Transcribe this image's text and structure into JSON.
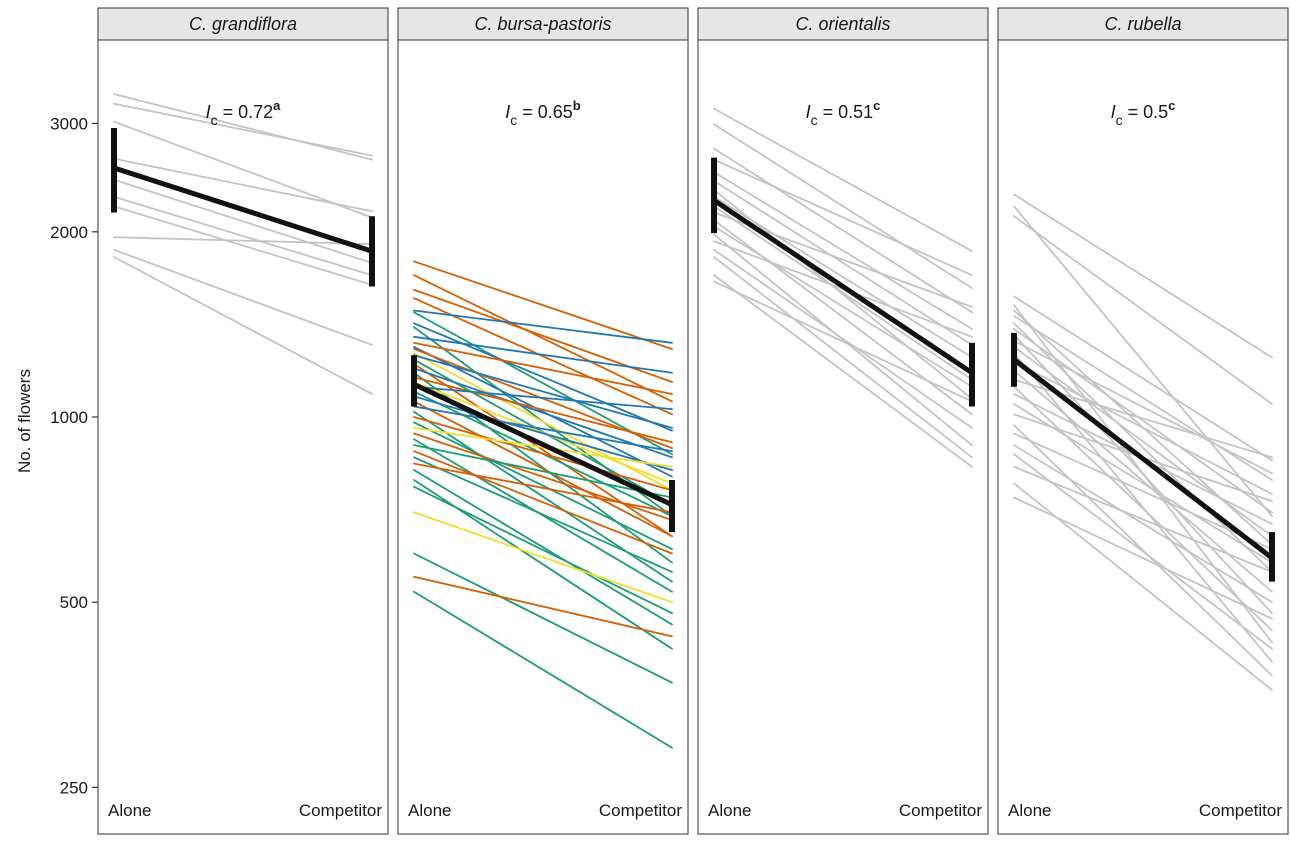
{
  "chart_data": {
    "type": "line",
    "ylabel": "No. of flowers",
    "y_scale": "log",
    "ylim": [
      210,
      4100
    ],
    "y_ticks": [
      {
        "value": 250,
        "label": "250"
      },
      {
        "value": 500,
        "label": "500"
      },
      {
        "value": 1000,
        "label": "1000"
      },
      {
        "value": 2000,
        "label": "2000"
      },
      {
        "value": 3000,
        "label": "3000"
      }
    ],
    "x_categories": [
      "Alone",
      "Competitor"
    ],
    "grid": false,
    "colors": {
      "individual": "#c4c4c4",
      "mean": "#111111",
      "orange": "#d95f02",
      "green": "#1b9e77",
      "blue": "#1f78b4",
      "yellow": "#f2de2a",
      "strip_fill": "#e6e6e6"
    },
    "panels": [
      {
        "title": "C. grandiflora",
        "annotation": {
          "symbol": "I",
          "subscript": "c",
          "text": " = 0.72",
          "superscript": "a"
        },
        "mean": {
          "alone": 2540,
          "competitor": 1860
        },
        "error": {
          "alone": [
            2150,
            2950
          ],
          "competitor": [
            1630,
            2120
          ]
        },
        "lines": [
          {
            "alone": 3350,
            "competitor": 2620,
            "color": "individual"
          },
          {
            "alone": 3230,
            "competitor": 2660,
            "color": "individual"
          },
          {
            "alone": 3020,
            "competitor": 2110,
            "color": "individual"
          },
          {
            "alone": 2630,
            "competitor": 2160,
            "color": "individual"
          },
          {
            "alone": 2430,
            "competitor": 1780,
            "color": "individual"
          },
          {
            "alone": 2280,
            "competitor": 1700,
            "color": "individual"
          },
          {
            "alone": 2200,
            "competitor": 1640,
            "color": "individual"
          },
          {
            "alone": 1960,
            "competitor": 1910,
            "color": "individual"
          },
          {
            "alone": 1870,
            "competitor": 1310,
            "color": "individual"
          },
          {
            "alone": 1820,
            "competitor": 1090,
            "color": "individual"
          }
        ]
      },
      {
        "title": "C. bursa-pastoris",
        "annotation": {
          "symbol": "I",
          "subscript": "c",
          "text": " = 0.65",
          "superscript": "b"
        },
        "mean": {
          "alone": 1130,
          "competitor": 720
        },
        "error": {
          "alone": [
            1040,
            1260
          ],
          "competitor": [
            650,
            790
          ]
        },
        "lines": [
          {
            "alone": 1790,
            "competitor": 1290,
            "color": "orange"
          },
          {
            "alone": 1700,
            "competitor": 1060,
            "color": "orange"
          },
          {
            "alone": 1610,
            "competitor": 1140,
            "color": "orange"
          },
          {
            "alone": 1560,
            "competitor": 1010,
            "color": "orange"
          },
          {
            "alone": 1490,
            "competitor": 1320,
            "color": "blue"
          },
          {
            "alone": 1480,
            "competitor": 870,
            "color": "green"
          },
          {
            "alone": 1420,
            "competitor": 950,
            "color": "blue"
          },
          {
            "alone": 1400,
            "competitor": 690,
            "color": "green"
          },
          {
            "alone": 1350,
            "competitor": 1180,
            "color": "blue"
          },
          {
            "alone": 1320,
            "competitor": 1090,
            "color": "orange"
          },
          {
            "alone": 1300,
            "competitor": 800,
            "color": "blue"
          },
          {
            "alone": 1290,
            "competitor": 890,
            "color": "orange"
          },
          {
            "alone": 1270,
            "competitor": 760,
            "color": "yellow"
          },
          {
            "alone": 1260,
            "competitor": 960,
            "color": "blue"
          },
          {
            "alone": 1240,
            "competitor": 720,
            "color": "green"
          },
          {
            "alone": 1220,
            "competitor": 640,
            "color": "orange"
          },
          {
            "alone": 1200,
            "competitor": 860,
            "color": "blue"
          },
          {
            "alone": 1180,
            "competitor": 580,
            "color": "green"
          },
          {
            "alone": 1160,
            "competitor": 910,
            "color": "orange"
          },
          {
            "alone": 1140,
            "competitor": 780,
            "color": "yellow"
          },
          {
            "alone": 1120,
            "competitor": 1030,
            "color": "blue"
          },
          {
            "alone": 1100,
            "competitor": 690,
            "color": "green"
          },
          {
            "alone": 1080,
            "competitor": 820,
            "color": "blue"
          },
          {
            "alone": 1060,
            "competitor": 640,
            "color": "orange"
          },
          {
            "alone": 1040,
            "competitor": 880,
            "color": "blue"
          },
          {
            "alone": 1020,
            "competitor": 540,
            "color": "green"
          },
          {
            "alone": 1000,
            "competitor": 760,
            "color": "orange"
          },
          {
            "alone": 980,
            "competitor": 610,
            "color": "green"
          },
          {
            "alone": 960,
            "competitor": 830,
            "color": "yellow"
          },
          {
            "alone": 940,
            "competitor": 680,
            "color": "orange"
          },
          {
            "alone": 920,
            "competitor": 520,
            "color": "green"
          },
          {
            "alone": 900,
            "competitor": 740,
            "color": "green"
          },
          {
            "alone": 880,
            "competitor": 600,
            "color": "orange"
          },
          {
            "alone": 860,
            "competitor": 560,
            "color": "green"
          },
          {
            "alone": 840,
            "competitor": 700,
            "color": "orange"
          },
          {
            "alone": 820,
            "competitor": 460,
            "color": "green"
          },
          {
            "alone": 790,
            "competitor": 420,
            "color": "green"
          },
          {
            "alone": 770,
            "competitor": 480,
            "color": "green"
          },
          {
            "alone": 700,
            "competitor": 500,
            "color": "yellow"
          },
          {
            "alone": 600,
            "competitor": 370,
            "color": "green"
          },
          {
            "alone": 550,
            "competitor": 440,
            "color": "orange"
          },
          {
            "alone": 520,
            "competitor": 290,
            "color": "green"
          }
        ]
      },
      {
        "title": "C. orientalis",
        "annotation": {
          "symbol": "I",
          "subscript": "c",
          "text": " = 0.51",
          "superscript": "c"
        },
        "mean": {
          "alone": 2250,
          "competitor": 1180
        },
        "error": {
          "alone": [
            1990,
            2640
          ],
          "competitor": [
            1040,
            1320
          ]
        },
        "lines": [
          {
            "alone": 3170,
            "competitor": 1860,
            "color": "individual"
          },
          {
            "alone": 2990,
            "competitor": 1620,
            "color": "individual"
          },
          {
            "alone": 2730,
            "competitor": 1480,
            "color": "individual"
          },
          {
            "alone": 2620,
            "competitor": 1700,
            "color": "individual"
          },
          {
            "alone": 2500,
            "competitor": 1390,
            "color": "individual"
          },
          {
            "alone": 2420,
            "competitor": 1310,
            "color": "individual"
          },
          {
            "alone": 2340,
            "competitor": 1070,
            "color": "individual"
          },
          {
            "alone": 2280,
            "competitor": 1250,
            "color": "individual"
          },
          {
            "alone": 2200,
            "competitor": 1150,
            "color": "individual"
          },
          {
            "alone": 2150,
            "competitor": 1510,
            "color": "individual"
          },
          {
            "alone": 2090,
            "competitor": 1010,
            "color": "individual"
          },
          {
            "alone": 2040,
            "competitor": 1120,
            "color": "individual"
          },
          {
            "alone": 1980,
            "competitor": 900,
            "color": "individual"
          },
          {
            "alone": 1930,
            "competitor": 1350,
            "color": "individual"
          },
          {
            "alone": 1870,
            "competitor": 960,
            "color": "individual"
          },
          {
            "alone": 1820,
            "competitor": 860,
            "color": "individual"
          },
          {
            "alone": 1700,
            "competitor": 830,
            "color": "individual"
          },
          {
            "alone": 1660,
            "competitor": 1060,
            "color": "individual"
          }
        ]
      },
      {
        "title": "C. rubella",
        "annotation": {
          "symbol": "I",
          "subscript": "c",
          "text": " = 0.5",
          "superscript": "c"
        },
        "mean": {
          "alone": 1240,
          "competitor": 590
        },
        "error": {
          "alone": [
            1120,
            1370
          ],
          "competitor": [
            540,
            650
          ]
        },
        "lines": [
          {
            "alone": 2300,
            "competitor": 1250,
            "color": "individual"
          },
          {
            "alone": 2200,
            "competitor": 690,
            "color": "individual"
          },
          {
            "alone": 2120,
            "competitor": 1050,
            "color": "individual"
          },
          {
            "alone": 1570,
            "competitor": 850,
            "color": "individual"
          },
          {
            "alone": 1520,
            "competitor": 430,
            "color": "individual"
          },
          {
            "alone": 1490,
            "competitor": 620,
            "color": "individual"
          },
          {
            "alone": 1460,
            "competitor": 790,
            "color": "individual"
          },
          {
            "alone": 1420,
            "competitor": 560,
            "color": "individual"
          },
          {
            "alone": 1390,
            "competitor": 700,
            "color": "individual"
          },
          {
            "alone": 1360,
            "competitor": 480,
            "color": "individual"
          },
          {
            "alone": 1330,
            "competitor": 810,
            "color": "individual"
          },
          {
            "alone": 1300,
            "competitor": 640,
            "color": "individual"
          },
          {
            "alone": 1270,
            "competitor": 400,
            "color": "individual"
          },
          {
            "alone": 1230,
            "competitor": 750,
            "color": "individual"
          },
          {
            "alone": 1190,
            "competitor": 520,
            "color": "individual"
          },
          {
            "alone": 1150,
            "competitor": 860,
            "color": "individual"
          },
          {
            "alone": 1120,
            "competitor": 450,
            "color": "individual"
          },
          {
            "alone": 1090,
            "competitor": 670,
            "color": "individual"
          },
          {
            "alone": 1050,
            "competitor": 580,
            "color": "individual"
          },
          {
            "alone": 1010,
            "competitor": 730,
            "color": "individual"
          },
          {
            "alone": 970,
            "competitor": 380,
            "color": "individual"
          },
          {
            "alone": 940,
            "competitor": 610,
            "color": "individual"
          },
          {
            "alone": 900,
            "competitor": 500,
            "color": "individual"
          },
          {
            "alone": 870,
            "competitor": 420,
            "color": "individual"
          },
          {
            "alone": 830,
            "competitor": 560,
            "color": "individual"
          },
          {
            "alone": 780,
            "competitor": 360,
            "color": "individual"
          },
          {
            "alone": 740,
            "competitor": 470,
            "color": "individual"
          }
        ]
      }
    ]
  }
}
